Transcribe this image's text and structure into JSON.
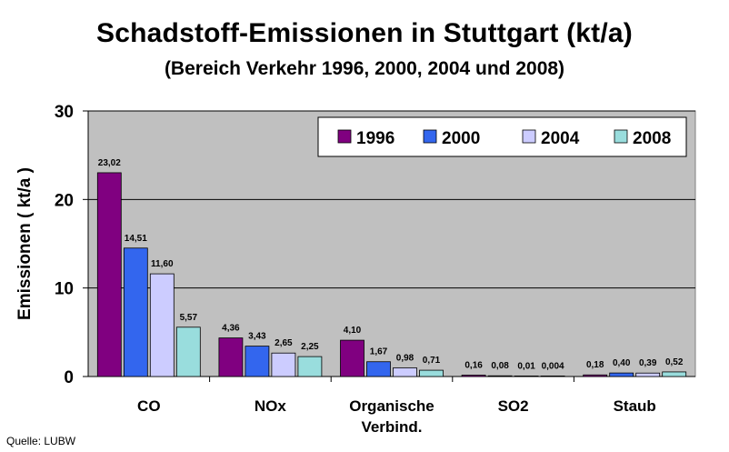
{
  "chart_data": {
    "type": "bar",
    "title": "Schadstoff-Emissionen in Stuttgart (kt/a)",
    "subtitle": "(Bereich Verkehr 1996, 2000, 2004 und 2008)",
    "ylabel": "Emissionen ( kt/a )",
    "xlabel": "",
    "ylim": [
      0,
      30
    ],
    "yticks": [
      "0",
      "10",
      "20",
      "30"
    ],
    "grid": true,
    "legend_position": "top-right",
    "categories": [
      {
        "line1": "CO",
        "line2": ""
      },
      {
        "line1": "NOx",
        "line2": ""
      },
      {
        "line1": "Organische",
        "line2": "Verbind."
      },
      {
        "line1": "SO2",
        "line2": ""
      },
      {
        "line1": "Staub",
        "line2": ""
      }
    ],
    "series": [
      {
        "name": "1996",
        "color": "#800080",
        "values": [
          23.02,
          4.36,
          4.1,
          0.16,
          0.18
        ],
        "labels": [
          "23,02",
          "4,36",
          "4,10",
          "0,16",
          "0,18"
        ]
      },
      {
        "name": "2000",
        "color": "#3366ee",
        "values": [
          14.51,
          3.43,
          1.67,
          0.08,
          0.4
        ],
        "labels": [
          "14,51",
          "3,43",
          "1,67",
          "0,08",
          "0,40"
        ]
      },
      {
        "name": "2004",
        "color": "#ccccff",
        "values": [
          11.6,
          2.65,
          0.98,
          0.01,
          0.39
        ],
        "labels": [
          "11,60",
          "2,65",
          "0,98",
          "0,01",
          "0,39"
        ]
      },
      {
        "name": "2008",
        "color": "#99dddd",
        "values": [
          5.57,
          2.25,
          0.71,
          0.004,
          0.52
        ],
        "labels": [
          "5,57",
          "2,25",
          "0,71",
          "0,004",
          "0,52"
        ]
      }
    ]
  },
  "source": "Quelle: LUBW"
}
